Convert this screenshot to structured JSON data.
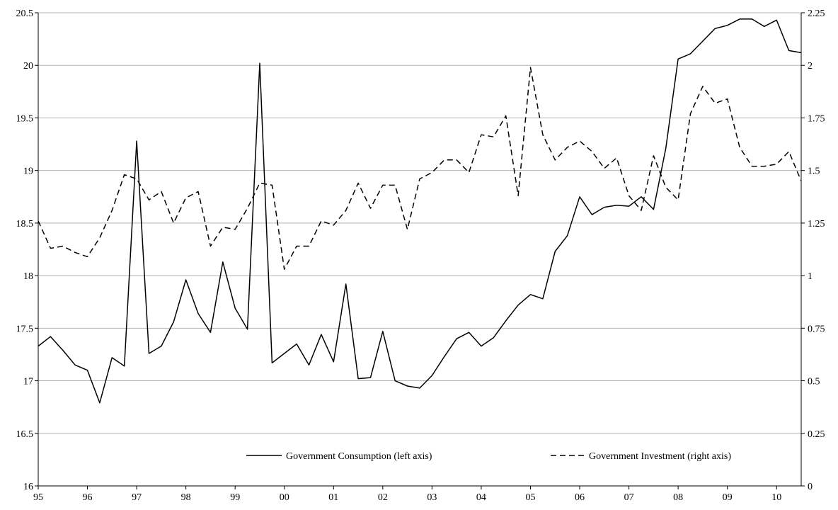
{
  "chart_data": {
    "type": "line",
    "title": "",
    "xlabel": "",
    "ylabel": "",
    "x_tick_labels": [
      "95",
      "96",
      "97",
      "98",
      "99",
      "00",
      "01",
      "02",
      "03",
      "04",
      "05",
      "06",
      "07",
      "08",
      "09",
      "10"
    ],
    "y_left": {
      "lim": [
        16,
        20.5
      ],
      "ticks": [
        16,
        16.5,
        17,
        17.5,
        18,
        18.5,
        19,
        19.5,
        20,
        20.5
      ],
      "tick_labels": [
        "16",
        "16.5",
        "17",
        "17.5",
        "18",
        "18.5",
        "19",
        "19.5",
        "20",
        "20.5"
      ]
    },
    "y_right": {
      "lim": [
        0,
        2.25
      ],
      "ticks": [
        0,
        0.25,
        0.5,
        0.75,
        1,
        1.25,
        1.5,
        1.75,
        2,
        2.25
      ],
      "tick_labels": [
        "0",
        "0.25",
        "0.5",
        "0.75",
        "1",
        "1.25",
        "1.5",
        "1.75",
        "2",
        "2.25"
      ]
    },
    "grid": "horizontal",
    "legend": {
      "position": "bottom"
    },
    "x_start_year": 1995,
    "x_step": 0.25,
    "series": [
      {
        "name": "Government Consumption (left axis)",
        "axis": "left",
        "style": "solid",
        "values": [
          17.33,
          17.42,
          17.29,
          17.15,
          17.1,
          16.79,
          17.22,
          17.14,
          19.28,
          17.26,
          17.33,
          17.56,
          17.96,
          17.64,
          17.46,
          18.13,
          17.69,
          17.49,
          20.02,
          17.17,
          17.26,
          17.35,
          17.15,
          17.44,
          17.18,
          17.92,
          17.02,
          17.03,
          17.47,
          17.0,
          16.95,
          16.93,
          17.05,
          17.23,
          17.4,
          17.46,
          17.33,
          17.41,
          17.57,
          17.72,
          17.82,
          17.78,
          18.23,
          18.38,
          18.75,
          18.58,
          18.65,
          18.67,
          18.66,
          18.75,
          18.63,
          19.21,
          20.06,
          20.11,
          20.23,
          20.35,
          20.38,
          20.44,
          20.44,
          20.37,
          20.43,
          20.14,
          20.12
        ]
      },
      {
        "name": "Government Investment (right axis)",
        "axis": "right",
        "style": "dashed",
        "values": [
          1.26,
          1.13,
          1.14,
          1.11,
          1.09,
          1.18,
          1.31,
          1.48,
          1.46,
          1.36,
          1.4,
          1.25,
          1.37,
          1.4,
          1.14,
          1.23,
          1.22,
          1.32,
          1.44,
          1.43,
          1.03,
          1.14,
          1.14,
          1.26,
          1.24,
          1.31,
          1.44,
          1.32,
          1.43,
          1.43,
          1.22,
          1.46,
          1.49,
          1.55,
          1.55,
          1.49,
          1.67,
          1.66,
          1.76,
          1.38,
          1.99,
          1.67,
          1.55,
          1.61,
          1.64,
          1.59,
          1.51,
          1.56,
          1.38,
          1.31,
          1.57,
          1.42,
          1.36,
          1.77,
          1.9,
          1.82,
          1.84,
          1.61,
          1.52,
          1.52,
          1.53,
          1.59,
          1.45
        ]
      }
    ]
  }
}
